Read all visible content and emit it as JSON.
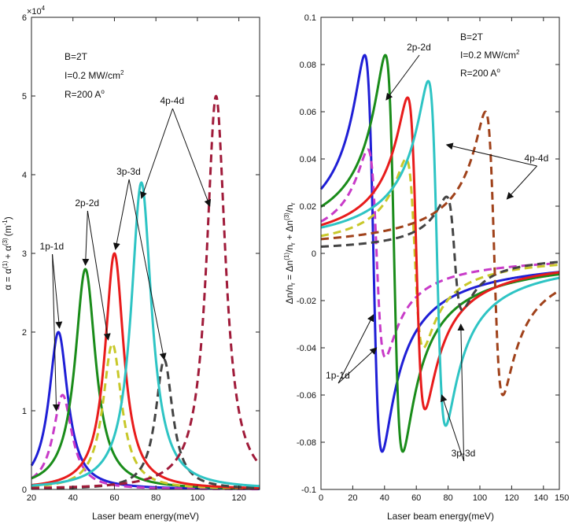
{
  "chart_data": [
    {
      "type": "line",
      "xlabel": "Laser beam energy(meV)",
      "ylabel_parts": [
        "α = α",
        "(1)",
        "+ α",
        "(3)",
        "(m",
        "-1",
        ")"
      ],
      "xlim": [
        20,
        130
      ],
      "ylim": [
        0,
        6
      ],
      "y_multiplier": "×10",
      "y_multiplier_exp": "4",
      "xticks": [
        20,
        40,
        60,
        80,
        100,
        120
      ],
      "yticks": [
        0,
        1,
        2,
        3,
        4,
        5,
        6
      ],
      "params": [
        "B=2T",
        "I=0.2 MW/cm",
        "2",
        "R=200 A",
        "o"
      ],
      "series": [
        {
          "name": "1p-1d",
          "style": "solid",
          "color": "#1f1fd6",
          "peak_x": 33,
          "peak_y": 2.0,
          "width": 5.5
        },
        {
          "name": "1p-1d",
          "style": "dashed",
          "color": "#c83bc8",
          "peak_x": 35,
          "peak_y": 1.2,
          "width": 5.5
        },
        {
          "name": "2p-2d",
          "style": "solid",
          "color": "#1a8c1a",
          "peak_x": 46,
          "peak_y": 2.8,
          "width": 6.0
        },
        {
          "name": "2p-2d",
          "style": "dashed",
          "color": "#c8c82a",
          "peak_x": 59,
          "peak_y": 1.85,
          "width": 5.5
        },
        {
          "name": "3p-3d",
          "style": "solid",
          "color": "#e81c1c",
          "peak_x": 60,
          "peak_y": 3.0,
          "width": 5.5
        },
        {
          "name": "3p-3d",
          "style": "dashed",
          "color": "#444444",
          "peak_x": 84,
          "peak_y": 1.65,
          "width": 5.0
        },
        {
          "name": "4p-4d",
          "style": "solid",
          "color": "#2ec4c4",
          "peak_x": 73,
          "peak_y": 3.9,
          "width": 6.0
        },
        {
          "name": "4p-4d",
          "style": "dashed",
          "color": "#a01b3a",
          "peak_x": 109,
          "peak_y": 5.0,
          "width": 5.5
        }
      ],
      "annotations": [
        {
          "text": "1p-1d",
          "tx": 24,
          "ty": 3.05,
          "targets": [
            [
              33.5,
              2.05
            ],
            [
              32,
              1.0
            ]
          ]
        },
        {
          "text": "2p-2d",
          "tx": 41,
          "ty": 3.6,
          "targets": [
            [
              46,
              2.85
            ],
            [
              57,
              1.9
            ]
          ]
        },
        {
          "text": "3p-3d",
          "tx": 61,
          "ty": 4.0,
          "targets": [
            [
              60.5,
              3.05
            ],
            [
              84,
              1.65
            ]
          ]
        },
        {
          "text": "4p-4d",
          "tx": 82,
          "ty": 4.9,
          "targets": [
            [
              73,
              3.7
            ],
            [
              106,
              3.6
            ]
          ]
        }
      ]
    },
    {
      "type": "line",
      "xlabel": "Laser beam energy(meV)",
      "ylabel_parts": [
        "Δn/n",
        "r",
        " = Δn",
        "(1)",
        "/n",
        "r",
        " + Δn",
        "(3)",
        "/n",
        "r"
      ],
      "xlim": [
        0,
        150
      ],
      "ylim": [
        -0.1,
        0.1
      ],
      "xticks": [
        0,
        20,
        40,
        60,
        80,
        100,
        120,
        140,
        150
      ],
      "xtick_labels": [
        "0",
        "20",
        "40",
        "60",
        "80",
        "100",
        "120",
        "140",
        "150"
      ],
      "yticks": [
        -0.1,
        -0.08,
        -0.06,
        -0.04,
        -0.02,
        0,
        0.02,
        0.04,
        0.06,
        0.08,
        0.1
      ],
      "ytick_labels": [
        "-0.1",
        "-0.08",
        "-0.06",
        "-0.04",
        "-0.02",
        "0",
        "0.02",
        "0.04",
        "0.06",
        "0.08",
        "0.1"
      ],
      "params": [
        "B=2T",
        "I=0.2 MW/cm",
        "2",
        "R=200 A",
        "o"
      ],
      "series": [
        {
          "name": "1p-1d",
          "style": "solid",
          "color": "#1f1fd6",
          "center": 33,
          "amp": 0.084,
          "width": 5.5
        },
        {
          "name": "1p-1d",
          "style": "dashed",
          "color": "#c83bc8",
          "center": 35,
          "amp": 0.044,
          "width": 5.5
        },
        {
          "name": "2p-2d",
          "style": "solid",
          "color": "#1a8c1a",
          "center": 46,
          "amp": 0.084,
          "width": 5.5
        },
        {
          "name": "2p-2d",
          "style": "dashed",
          "color": "#c8c82a",
          "center": 59,
          "amp": 0.04,
          "width": 5.5
        },
        {
          "name": "3p-3d",
          "style": "solid",
          "color": "#e81c1c",
          "center": 60,
          "amp": 0.066,
          "width": 5.5
        },
        {
          "name": "3p-3d",
          "style": "dashed",
          "color": "#444444",
          "center": 84,
          "amp": 0.024,
          "width": 5.0
        },
        {
          "name": "4p-4d",
          "style": "solid",
          "color": "#2ec4c4",
          "center": 73,
          "amp": 0.073,
          "width": 5.5
        },
        {
          "name": "4p-4d",
          "style": "dashed",
          "color": "#a0421b",
          "center": 109,
          "amp": 0.06,
          "width": 5.5
        }
      ],
      "annotations": [
        {
          "text": "2p-2d",
          "tx": 54,
          "ty": 0.086,
          "targets": [
            [
              41,
              0.065
            ]
          ]
        },
        {
          "text": "4p-4d",
          "tx": 128,
          "ty": 0.039,
          "targets": [
            [
              79,
              0.046
            ],
            [
              117,
              0.023
            ]
          ]
        },
        {
          "text": "1p-1d",
          "tx": 3,
          "ty": -0.053,
          "targets": [
            [
              33,
              -0.026
            ],
            [
              35,
              -0.04
            ]
          ]
        },
        {
          "text": "3p-3d",
          "tx": 82,
          "ty": -0.086,
          "targets": [
            [
              76,
              -0.06
            ],
            [
              88,
              -0.03
            ]
          ]
        }
      ]
    }
  ]
}
